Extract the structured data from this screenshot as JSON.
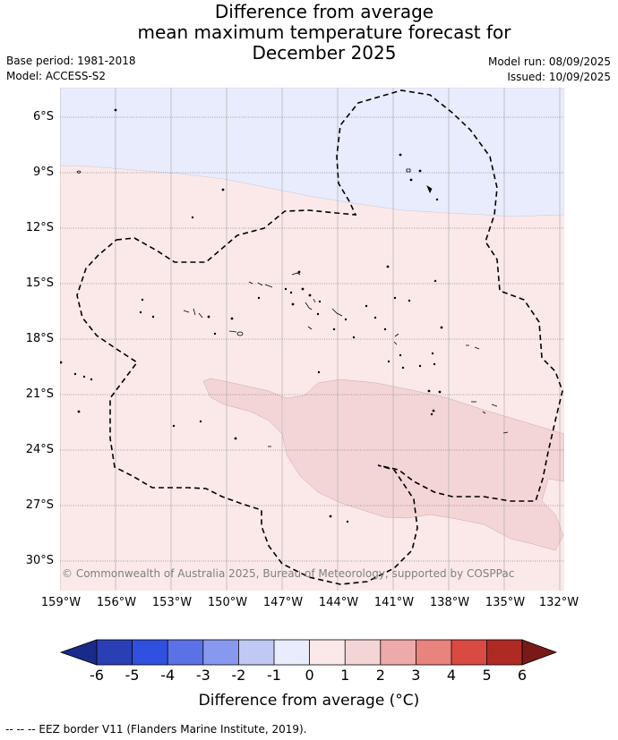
{
  "header": {
    "title_line1": "Difference from average",
    "title_line2": "mean maximum temperature forecast for",
    "title_line3": "December 2025",
    "base_period": "Base period: 1981-2018",
    "model": "Model: ACCESS-S2",
    "model_run": "Model run: 08/09/2025",
    "issued": "Issued: 10/09/2025"
  },
  "map": {
    "lat_labels": [
      "6°S",
      "9°S",
      "12°S",
      "15°S",
      "18°S",
      "21°S",
      "24°S",
      "27°S",
      "30°S"
    ],
    "lon_labels": [
      "159°W",
      "156°W",
      "153°W",
      "150°W",
      "147°W",
      "144°W",
      "141°W",
      "138°W",
      "135°W",
      "132°W"
    ],
    "copyright": "© Commonwealth of Australia 2025, Bureau of Meteorology, supported by COSPPac",
    "regions": [
      {
        "category": "-1 to 0",
        "color": "#e8ecfc"
      },
      {
        "category": "0 to 1",
        "color": "#fbe9e9"
      },
      {
        "category": "1 to 2",
        "color": "#f4d5d5"
      }
    ],
    "eez_line_style": "dashed"
  },
  "colorbar": {
    "ticks": [
      "-6",
      "-5",
      "-4",
      "-3",
      "-2",
      "-1",
      "0",
      "1",
      "2",
      "3",
      "4",
      "5",
      "6"
    ],
    "colors": [
      "#1a2a8a",
      "#2a3fb4",
      "#3050e0",
      "#5a72e6",
      "#8898ee",
      "#c0c8f4",
      "#e8ecfc",
      "#fbe9e9",
      "#f4d5d5",
      "#eeaaa8",
      "#e8837d",
      "#d94a43",
      "#b02a24",
      "#7a1a18"
    ],
    "label": "Difference from average (°C)"
  },
  "footnote": "-- -- -- EEZ border V11 (Flanders Marine Institute, 2019)."
}
